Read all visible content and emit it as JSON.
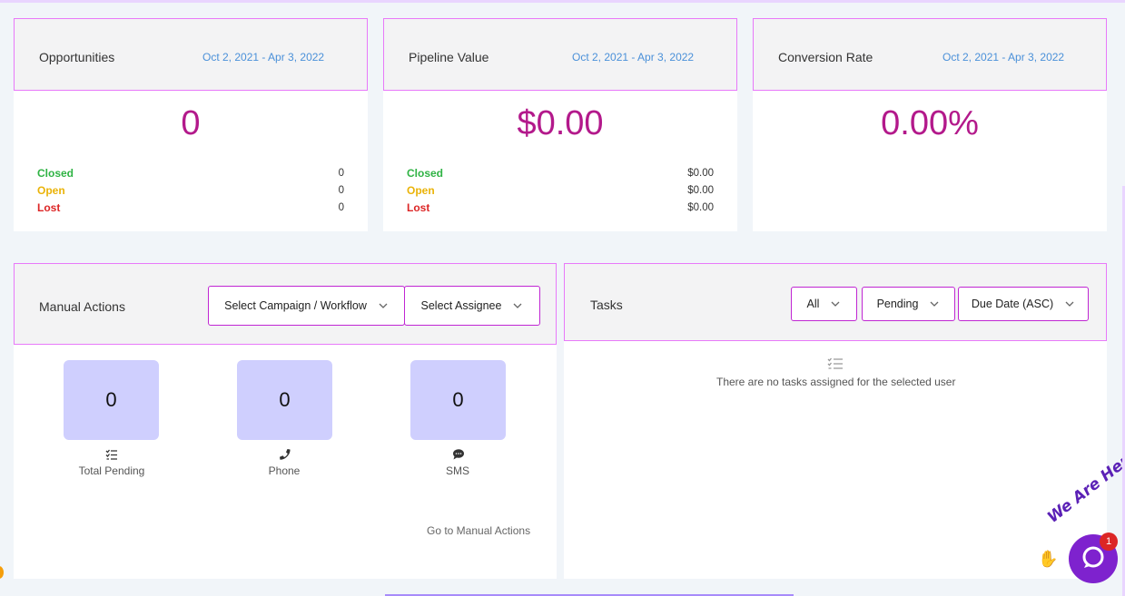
{
  "cards": {
    "opportunities": {
      "title": "Opportunities",
      "date_range": "Oct 2, 2021 - Apr 3, 2022",
      "value": "0",
      "stats": [
        {
          "label": "Closed",
          "value": "0"
        },
        {
          "label": "Open",
          "value": "0"
        },
        {
          "label": "Lost",
          "value": "0"
        }
      ]
    },
    "pipeline": {
      "title": "Pipeline Value",
      "date_range": "Oct 2, 2021 - Apr 3, 2022",
      "value": "$0.00",
      "stats": [
        {
          "label": "Closed",
          "value": "$0.00"
        },
        {
          "label": "Open",
          "value": "$0.00"
        },
        {
          "label": "Lost",
          "value": "$0.00"
        }
      ]
    },
    "conversion": {
      "title": "Conversion Rate",
      "date_range": "Oct 2, 2021 - Apr 3, 2022",
      "value": "0.00%"
    }
  },
  "manual_actions": {
    "title": "Manual Actions",
    "campaign_dropdown": "Select Campaign / Workflow",
    "assignee_dropdown": "Select Assignee",
    "boxes": [
      {
        "value": "0",
        "label": "Total Pending",
        "icon": "list-check-icon"
      },
      {
        "value": "0",
        "label": "Phone",
        "icon": "phone-icon"
      },
      {
        "value": "0",
        "label": "SMS",
        "icon": "chat-icon"
      }
    ],
    "link": "Go to Manual Actions"
  },
  "tasks": {
    "title": "Tasks",
    "filters": [
      "All",
      "Pending",
      "Due Date (ASC)"
    ],
    "empty_message": "There are no tasks assigned for the selected user"
  },
  "chat_widget": {
    "banner": "We Are Here!",
    "badge_count": "1"
  },
  "colors": {
    "accent": "#b3198b",
    "border": "#e879f9",
    "date": "#4a90d9",
    "closed": "#2fb344",
    "open": "#eab308",
    "lost": "#dc2626",
    "box": "#cfcffe",
    "chat": "#7e22ce"
  }
}
